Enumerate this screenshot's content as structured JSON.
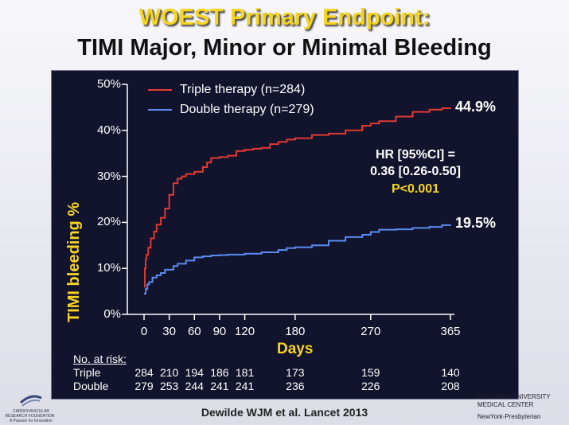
{
  "title": {
    "line1": "WOEST Primary Endpoint:",
    "line2": "TIMI Major, Minor or Minimal Bleeding"
  },
  "colors": {
    "triple": "#e03a32",
    "double": "#5a8cf0",
    "accent": "#f7d51e",
    "panel": "#12132c"
  },
  "chart_data": {
    "type": "line",
    "ylabel": "TIMI bleeding %",
    "xlabel": "Days",
    "ylim": [
      0,
      50
    ],
    "xlim": [
      0,
      365
    ],
    "yticks": [
      "0%",
      "10%",
      "20%",
      "30%",
      "40%",
      "50%"
    ],
    "xticks": [
      0,
      30,
      60,
      90,
      120,
      180,
      270,
      365
    ],
    "series": [
      {
        "name": "Triple therapy (n=284)",
        "end_label": "44.9%",
        "points": [
          [
            0,
            6
          ],
          [
            1,
            10
          ],
          [
            2,
            12
          ],
          [
            3,
            13
          ],
          [
            5,
            14.5
          ],
          [
            8,
            16.5
          ],
          [
            12,
            18
          ],
          [
            15,
            19.5
          ],
          [
            20,
            21
          ],
          [
            25,
            23
          ],
          [
            30,
            26
          ],
          [
            35,
            28.5
          ],
          [
            40,
            29.5
          ],
          [
            45,
            30
          ],
          [
            50,
            30.5
          ],
          [
            60,
            31
          ],
          [
            70,
            32
          ],
          [
            75,
            33
          ],
          [
            80,
            34
          ],
          [
            90,
            34.2
          ],
          [
            100,
            34.5
          ],
          [
            110,
            35.5
          ],
          [
            120,
            35.8
          ],
          [
            130,
            36
          ],
          [
            140,
            36.2
          ],
          [
            150,
            37
          ],
          [
            160,
            37.5
          ],
          [
            170,
            38
          ],
          [
            180,
            38.3
          ],
          [
            200,
            39
          ],
          [
            220,
            39.3
          ],
          [
            240,
            40
          ],
          [
            260,
            41
          ],
          [
            270,
            41.5
          ],
          [
            280,
            42
          ],
          [
            300,
            43
          ],
          [
            320,
            44
          ],
          [
            340,
            44.5
          ],
          [
            355,
            44.8
          ],
          [
            365,
            44.9
          ]
        ]
      },
      {
        "name": "Double therapy (n=279)",
        "end_label": "19.5%",
        "points": [
          [
            0,
            4.5
          ],
          [
            2,
            5.5
          ],
          [
            4,
            6.5
          ],
          [
            6,
            7
          ],
          [
            10,
            8
          ],
          [
            15,
            8.5
          ],
          [
            20,
            9
          ],
          [
            25,
            9.7
          ],
          [
            35,
            10.5
          ],
          [
            40,
            11
          ],
          [
            50,
            11.7
          ],
          [
            60,
            12.4
          ],
          [
            70,
            12.6
          ],
          [
            80,
            12.8
          ],
          [
            90,
            12.9
          ],
          [
            100,
            13
          ],
          [
            120,
            13.2
          ],
          [
            140,
            13.5
          ],
          [
            160,
            14
          ],
          [
            170,
            14.4
          ],
          [
            180,
            14.6
          ],
          [
            200,
            15
          ],
          [
            220,
            16
          ],
          [
            240,
            16.8
          ],
          [
            260,
            17.3
          ],
          [
            270,
            17.9
          ],
          [
            280,
            18.4
          ],
          [
            300,
            18.5
          ],
          [
            320,
            18.8
          ],
          [
            340,
            19
          ],
          [
            355,
            19.4
          ],
          [
            365,
            19.5
          ]
        ]
      }
    ]
  },
  "stats": {
    "hr_line1": "HR [95%CI] =",
    "hr_line2": "0.36 [0.26-0.50]",
    "p": "P<0.001"
  },
  "risk": {
    "title": "No. at risk:",
    "rows": [
      {
        "label": "Triple",
        "values": [
          "284",
          "210",
          "194",
          "186",
          "181",
          "173",
          "159",
          "140"
        ]
      },
      {
        "label": "Double",
        "values": [
          "279",
          "253",
          "244",
          "241",
          "241",
          "236",
          "226",
          "208"
        ]
      }
    ]
  },
  "citation": "Dewilde WJM et al. Lancet 2013",
  "logos": {
    "left": "CARDIOVASCULAR RESEARCH FOUNDATION · A Passion for Innovation",
    "right_1": "COLUMBIA UNIVERSITY MEDICAL CENTER",
    "right_2": "NewYork-Presbyterian"
  }
}
